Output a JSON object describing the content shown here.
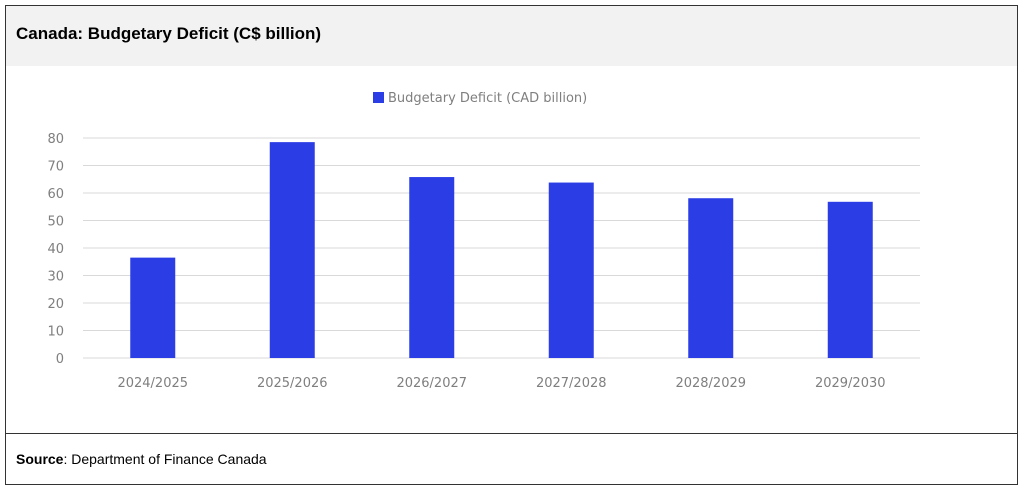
{
  "header": {
    "title": "Canada: Budgetary Deficit (C$ billion)"
  },
  "footer": {
    "source_label": "Source",
    "source_text": ": Department of Finance Canada"
  },
  "chart_data": {
    "type": "bar",
    "categories": [
      "2024/2025",
      "2025/2026",
      "2026/2027",
      "2027/2028",
      "2028/2029",
      "2029/2030"
    ],
    "series": [
      {
        "name": "Budgetary Deficit (CAD billion)",
        "values": [
          36.5,
          78.5,
          65.8,
          63.8,
          58.1,
          56.8
        ]
      }
    ],
    "ylim": [
      0,
      80
    ],
    "yticks": [
      0,
      10,
      20,
      30,
      40,
      50,
      60,
      70,
      80
    ],
    "grid": true,
    "legend": "top-center",
    "bar_color": "#2b3ee6",
    "grid_color": "#d9d9d9",
    "tick_color": "#7f7f7f"
  }
}
